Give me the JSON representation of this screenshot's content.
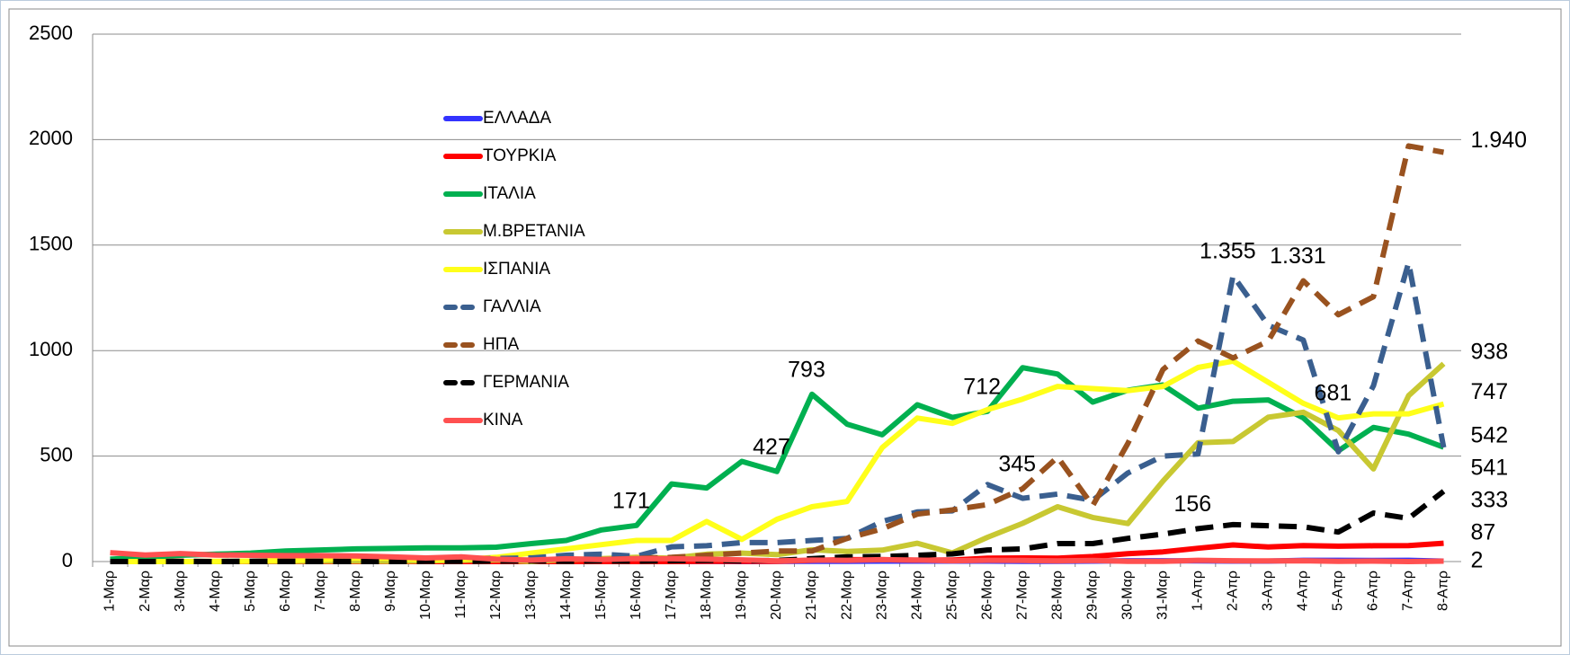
{
  "chart_data": {
    "type": "line",
    "categories": [
      "1-Μαρ",
      "2-Μαρ",
      "3-Μαρ",
      "4-Μαρ",
      "5-Μαρ",
      "6-Μαρ",
      "7-Μαρ",
      "8-Μαρ",
      "9-Μαρ",
      "10-Μαρ",
      "11-Μαρ",
      "12-Μαρ",
      "13-Μαρ",
      "14-Μαρ",
      "15-Μαρ",
      "16-Μαρ",
      "17-Μαρ",
      "18-Μαρ",
      "19-Μαρ",
      "20-Μαρ",
      "21-Μαρ",
      "22-Μαρ",
      "23-Μαρ",
      "24-Μαρ",
      "25-Μαρ",
      "26-Μαρ",
      "27-Μαρ",
      "28-Μαρ",
      "29-Μαρ",
      "30-Μαρ",
      "31-Μαρ",
      "1-Απρ",
      "2-Απρ",
      "3-Απρ",
      "4-Απρ",
      "5-Απρ",
      "6-Απρ",
      "7-Απρ",
      "8-Απρ"
    ],
    "ylim": [
      0,
      2500
    ],
    "yticks": [
      0,
      500,
      1000,
      1500,
      2000,
      2500
    ],
    "grid": true,
    "series": [
      {
        "name": "ΕΛΛΑΔΑ",
        "color": "#3333ff",
        "dashed": false,
        "values": [
          0,
          0,
          0,
          0,
          0,
          0,
          0,
          0,
          0,
          0,
          0,
          1,
          0,
          1,
          0,
          1,
          0,
          1,
          0,
          1,
          1,
          1,
          2,
          2,
          2,
          2,
          1,
          1,
          2,
          4,
          4,
          3,
          2,
          2,
          6,
          6,
          5,
          6,
          2
        ],
        "value_labels": [
          null,
          null,
          null,
          null,
          null,
          null,
          null,
          null,
          null,
          null,
          null,
          null,
          null,
          null,
          null,
          null,
          null,
          null,
          null,
          null,
          null,
          null,
          null,
          null,
          null,
          null,
          null,
          null,
          null,
          null,
          null,
          null,
          null,
          null,
          null,
          null,
          null,
          null,
          "2"
        ]
      },
      {
        "name": "ΤΟΥΡΚΙΑ",
        "color": "#ff0000",
        "dashed": false,
        "values": [
          0,
          0,
          0,
          0,
          0,
          0,
          0,
          0,
          0,
          0,
          0,
          0,
          0,
          0,
          0,
          0,
          0,
          1,
          1,
          1,
          6,
          9,
          9,
          7,
          7,
          16,
          17,
          16,
          24,
          37,
          46,
          63,
          79,
          69,
          76,
          73,
          75,
          76,
          87
        ],
        "value_labels": [
          null,
          null,
          null,
          null,
          null,
          null,
          null,
          null,
          null,
          null,
          null,
          null,
          null,
          null,
          null,
          null,
          null,
          null,
          null,
          null,
          null,
          null,
          null,
          null,
          null,
          null,
          null,
          null,
          null,
          null,
          null,
          null,
          null,
          null,
          null,
          null,
          null,
          null,
          "87"
        ]
      },
      {
        "name": "ΙΤΑΛΙΑ",
        "color": "#00b050",
        "dashed": false,
        "values": [
          11,
          20,
          30,
          35,
          40,
          50,
          55,
          60,
          62,
          65,
          65,
          68,
          85,
          100,
          150,
          171,
          368,
          349,
          475,
          427,
          793,
          651,
          601,
          743,
          683,
          712,
          919,
          889,
          756,
          812,
          837,
          727,
          760,
          766,
          681,
          525,
          636,
          604,
          542
        ],
        "value_labels": [
          null,
          null,
          null,
          null,
          null,
          null,
          null,
          null,
          null,
          null,
          null,
          null,
          null,
          null,
          null,
          "171",
          null,
          null,
          null,
          "427",
          "793",
          null,
          null,
          null,
          null,
          "712",
          null,
          null,
          null,
          null,
          null,
          null,
          null,
          null,
          null,
          null,
          null,
          null,
          "542"
        ]
      },
      {
        "name": "Μ.ΒΡΕΤΑΝΙΑ",
        "color": "#c8c832",
        "dashed": false,
        "values": [
          0,
          0,
          0,
          0,
          1,
          1,
          2,
          2,
          1,
          3,
          6,
          8,
          0,
          10,
          14,
          20,
          16,
          35,
          40,
          33,
          56,
          48,
          54,
          87,
          41,
          115,
          181,
          260,
          209,
          180,
          381,
          563,
          569,
          684,
          708,
          621,
          439,
          786,
          938
        ],
        "value_labels": [
          null,
          null,
          null,
          null,
          null,
          null,
          null,
          null,
          null,
          null,
          null,
          null,
          null,
          null,
          null,
          null,
          null,
          null,
          null,
          null,
          null,
          null,
          null,
          null,
          null,
          null,
          null,
          null,
          null,
          null,
          null,
          null,
          null,
          null,
          null,
          null,
          null,
          null,
          "938"
        ]
      },
      {
        "name": "ΙΣΠΑΝΙΑ",
        "color": "#ffff1a",
        "dashed": false,
        "values": [
          0,
          0,
          0,
          1,
          2,
          5,
          10,
          17,
          16,
          8,
          10,
          20,
          40,
          60,
          80,
          100,
          100,
          190,
          105,
          200,
          260,
          285,
          540,
          680,
          655,
          720,
          770,
          830,
          820,
          810,
          830,
          920,
          950,
          850,
          750,
          681,
          700,
          700,
          747
        ],
        "value_labels": [
          null,
          null,
          null,
          null,
          null,
          null,
          null,
          null,
          null,
          null,
          null,
          null,
          null,
          null,
          null,
          null,
          null,
          null,
          null,
          null,
          null,
          null,
          null,
          null,
          null,
          null,
          null,
          null,
          null,
          null,
          null,
          null,
          null,
          null,
          null,
          "681",
          null,
          null,
          "747"
        ]
      },
      {
        "name": "ΓΑΛΛΙΑ",
        "color": "#3a5f8f",
        "dashed": true,
        "values": [
          0,
          0,
          1,
          0,
          2,
          3,
          2,
          0,
          8,
          12,
          15,
          15,
          17,
          30,
          35,
          25,
          70,
          75,
          90,
          90,
          100,
          110,
          190,
          235,
          240,
          365,
          300,
          320,
          290,
          420,
          500,
          510,
          1355,
          1120,
          1050,
          520,
          833,
          1417,
          541
        ],
        "value_labels": [
          null,
          null,
          null,
          null,
          null,
          null,
          null,
          null,
          null,
          null,
          null,
          null,
          null,
          null,
          null,
          null,
          null,
          null,
          null,
          null,
          null,
          null,
          null,
          null,
          null,
          null,
          null,
          null,
          null,
          null,
          null,
          null,
          "1.355",
          null,
          null,
          null,
          null,
          null,
          "541"
        ]
      },
      {
        "name": "ΗΠΑ",
        "color": "#99521f",
        "dashed": true,
        "values": [
          0,
          0,
          2,
          0,
          1,
          2,
          1,
          1,
          1,
          2,
          5,
          5,
          5,
          8,
          10,
          15,
          20,
          30,
          40,
          50,
          50,
          110,
          155,
          225,
          245,
          270,
          345,
          495,
          265,
          560,
          910,
          1045,
          965,
          1045,
          1331,
          1170,
          1255,
          1970,
          1940
        ],
        "value_labels": [
          null,
          null,
          null,
          null,
          null,
          null,
          null,
          null,
          null,
          null,
          null,
          null,
          null,
          null,
          null,
          null,
          null,
          null,
          null,
          null,
          null,
          null,
          null,
          null,
          null,
          null,
          "345",
          null,
          null,
          null,
          null,
          null,
          null,
          null,
          "1.331",
          null,
          null,
          null,
          "1.940"
        ]
      },
      {
        "name": "ΓΕΡΜΑΝΙΑ",
        "color": "#000000",
        "dashed": true,
        "values": [
          0,
          0,
          0,
          0,
          0,
          0,
          0,
          0,
          0,
          1,
          1,
          2,
          3,
          1,
          3,
          2,
          4,
          6,
          3,
          5,
          14,
          22,
          24,
          30,
          36,
          55,
          60,
          85,
          85,
          110,
          130,
          156,
          175,
          170,
          165,
          140,
          230,
          205,
          333
        ],
        "value_labels": [
          null,
          null,
          null,
          null,
          null,
          null,
          null,
          null,
          null,
          null,
          null,
          null,
          null,
          null,
          null,
          null,
          null,
          null,
          null,
          null,
          null,
          null,
          null,
          null,
          null,
          null,
          null,
          null,
          null,
          null,
          null,
          "156",
          null,
          null,
          null,
          null,
          null,
          null,
          "333"
        ]
      },
      {
        "name": "ΚΙΝΑ",
        "color": "#ff5050",
        "dashed": false,
        "values": [
          42,
          31,
          38,
          31,
          30,
          28,
          28,
          27,
          22,
          17,
          22,
          11,
          7,
          13,
          10,
          14,
          13,
          11,
          8,
          3,
          7,
          6,
          9,
          7,
          4,
          6,
          5,
          3,
          5,
          1,
          1,
          6,
          4,
          3,
          4,
          1,
          2,
          0,
          2
        ]
      }
    ]
  }
}
